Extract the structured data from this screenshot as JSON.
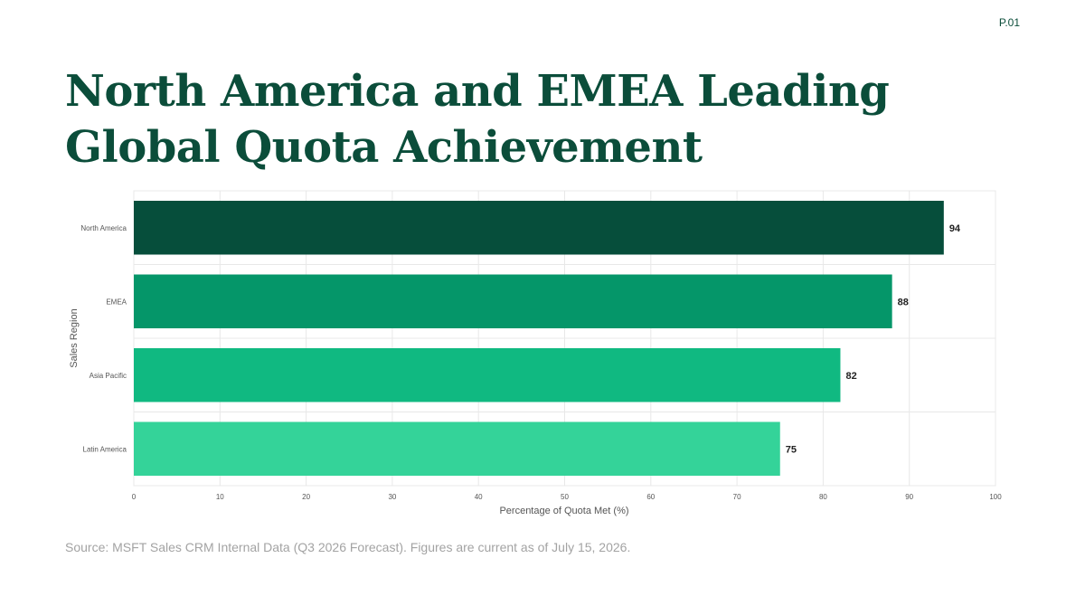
{
  "page": {
    "number": "P.01"
  },
  "title": "North America and EMEA Leading Global Quota Achievement",
  "source": "Source: MSFT Sales CRM Internal Data (Q3 2026 Forecast). Figures are current as of July 15, 2026.",
  "colors": {
    "title": "#0b4d3a",
    "bars": [
      "#064e3b",
      "#059669",
      "#10b981",
      "#34d399"
    ],
    "grid": "#e8e8e8",
    "axis_text": "#555555"
  },
  "chart_data": {
    "type": "bar",
    "orientation": "horizontal",
    "categories": [
      "North America",
      "EMEA",
      "Asia Pacific",
      "Latin America"
    ],
    "values": [
      94,
      88,
      82,
      75
    ],
    "xlabel": "Percentage of Quota Met (%)",
    "ylabel": "Sales Region",
    "xlim": [
      0,
      100
    ],
    "xticks": [
      0,
      10,
      20,
      30,
      40,
      50,
      60,
      70,
      80,
      90,
      100
    ],
    "grid": true,
    "legend": "none",
    "data_labels": true
  }
}
